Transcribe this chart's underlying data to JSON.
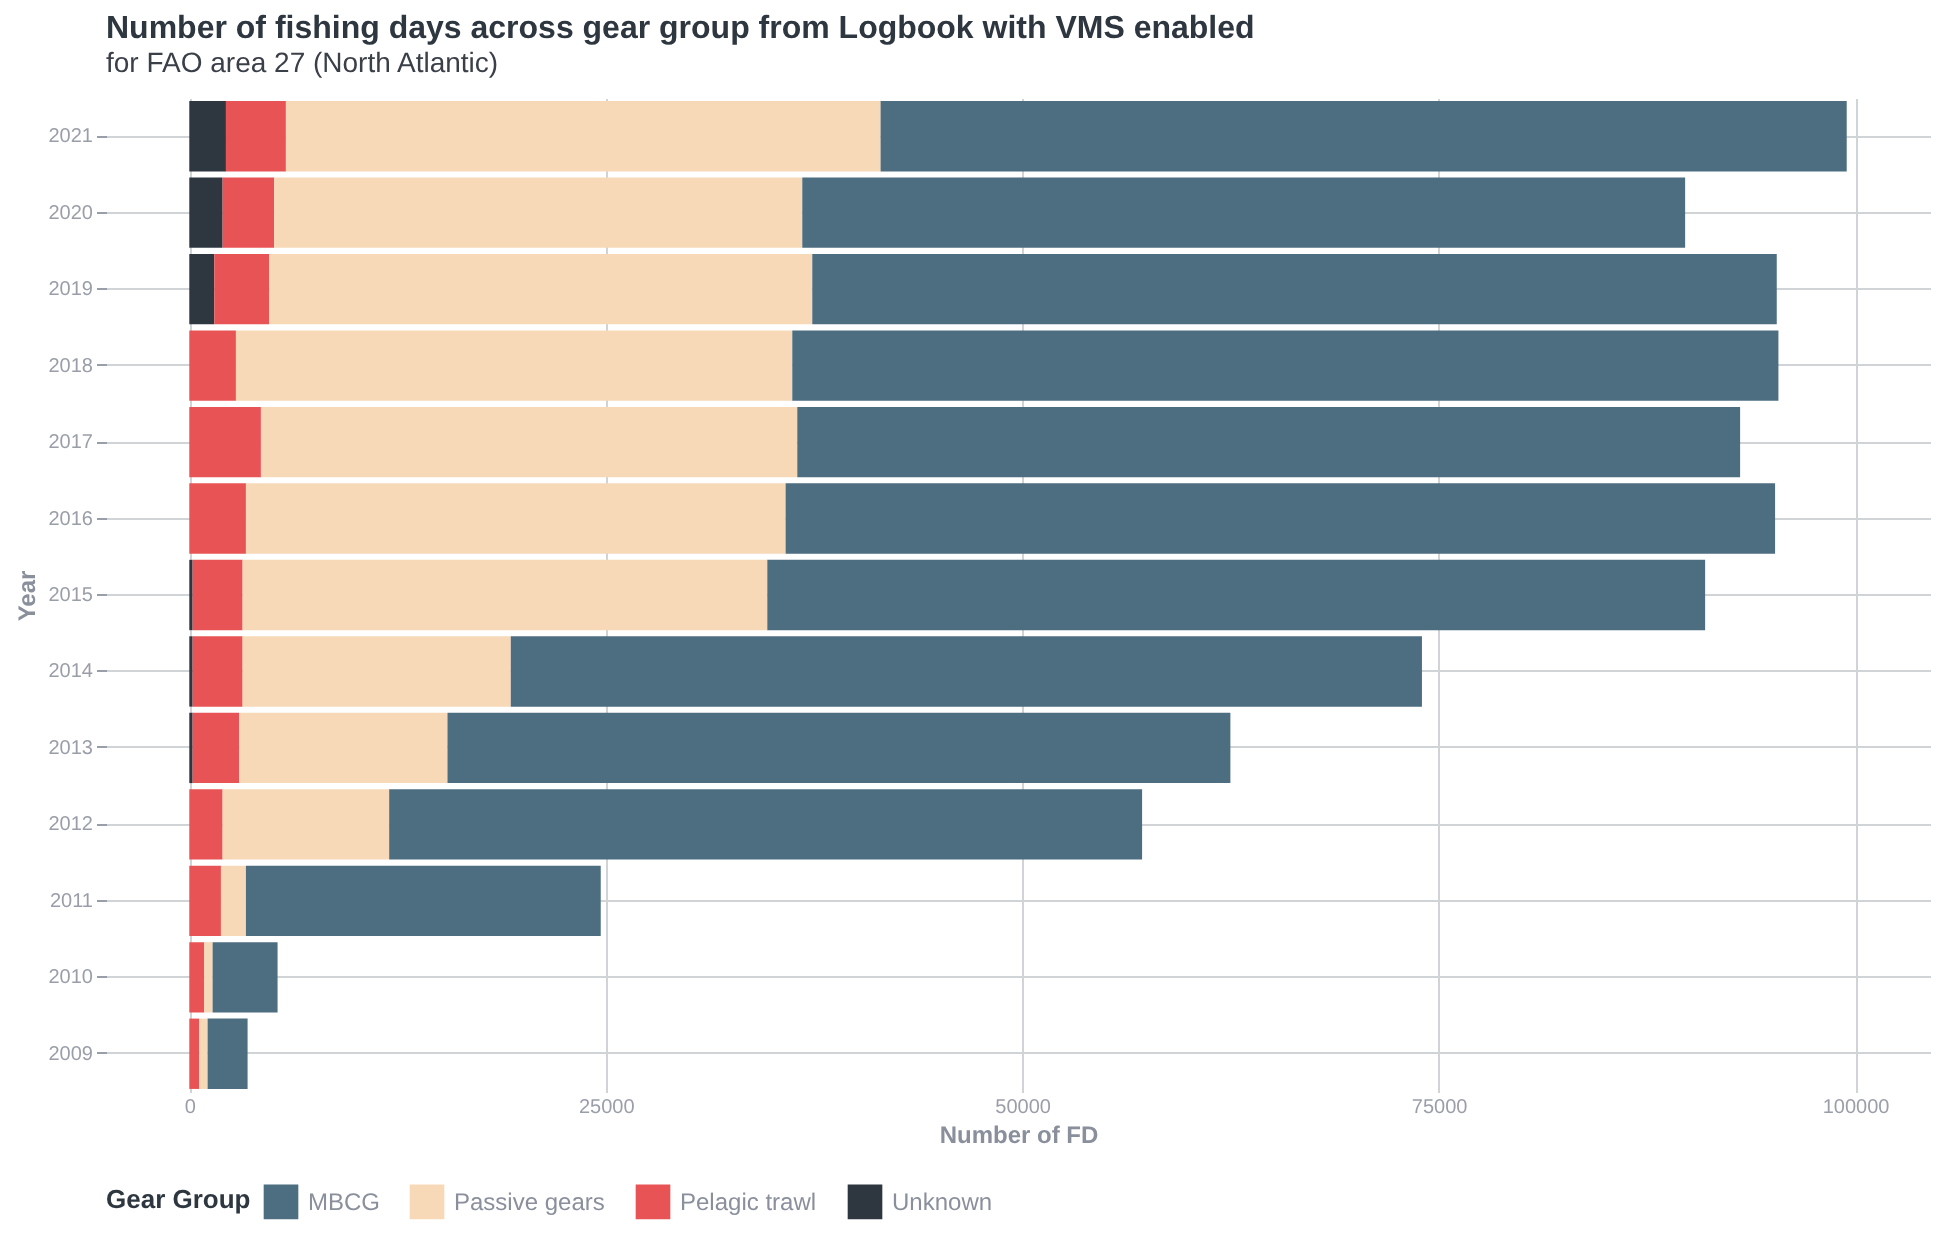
{
  "chart_data": {
    "type": "bar",
    "orientation": "horizontal",
    "stacked": true,
    "title": "Number of fishing days across gear group from Logbook with VMS enabled",
    "subtitle": "for FAO area 27 (North Atlantic)",
    "xlabel": "Number of FD",
    "ylabel": "Year",
    "legend_title": "Gear Group",
    "categories": [
      "2021",
      "2020",
      "2019",
      "2018",
      "2017",
      "2016",
      "2015",
      "2014",
      "2013",
      "2012",
      "2011",
      "2010",
      "2009"
    ],
    "series": [
      {
        "name": "Unknown",
        "color": "#2e3740",
        "values": [
          2200,
          2000,
          1500,
          null,
          null,
          null,
          200,
          200,
          200,
          null,
          null,
          null,
          null
        ]
      },
      {
        "name": "Pelagic trawl",
        "color": "#e85455",
        "values": [
          3600,
          3100,
          3300,
          2800,
          4300,
          3400,
          3000,
          3000,
          2800,
          2000,
          1900,
          900,
          600
        ]
      },
      {
        "name": "Passive gears",
        "color": "#f7d9b8",
        "values": [
          35700,
          31700,
          32600,
          33400,
          32200,
          32400,
          31500,
          16100,
          12500,
          10000,
          1500,
          500,
          500
        ]
      },
      {
        "name": "MBCG",
        "color": "#4d6d80",
        "values": [
          58000,
          53000,
          57900,
          59200,
          56600,
          59400,
          56300,
          54700,
          47000,
          45200,
          21300,
          3900,
          2400
        ]
      }
    ],
    "xlim": [
      -5000,
      104500
    ],
    "xticks": [
      0,
      25000,
      50000,
      75000,
      100000
    ],
    "grid": true,
    "legend": "bottom"
  }
}
